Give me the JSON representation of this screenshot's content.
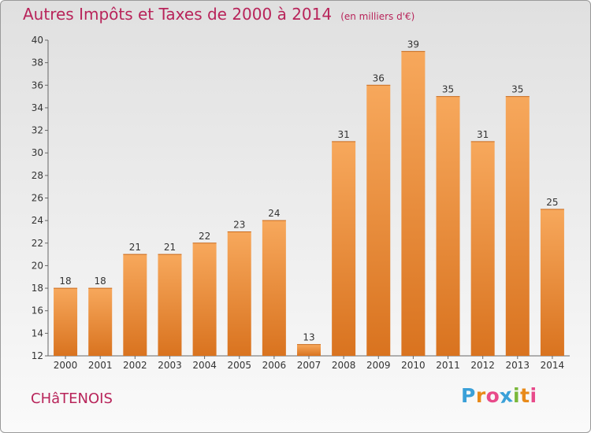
{
  "title": "Autres Impôts et Taxes de 2000 à 2014",
  "unit": "(en milliers d'€)",
  "commune": "CHâTENOIS",
  "logo": {
    "letters": [
      "P",
      "r",
      "o",
      "x",
      "i",
      "t",
      "i"
    ],
    "colors": [
      "#3aa0d8",
      "#e88a1a",
      "#e84a8a",
      "#3aa0d8",
      "#7ab83a",
      "#e88a1a",
      "#e84a8a"
    ]
  },
  "colors": {
    "bar_light": "#f7a85c",
    "bar_dark": "#d9731f",
    "text": "#b8245a"
  },
  "chart_data": {
    "type": "bar",
    "title": "Autres Impôts et Taxes de 2000 à 2014",
    "subtitle": "(en milliers d'€)",
    "categories": [
      "2000",
      "2001",
      "2002",
      "2003",
      "2004",
      "2005",
      "2006",
      "2007",
      "2008",
      "2009",
      "2010",
      "2011",
      "2012",
      "2013",
      "2014"
    ],
    "values": [
      18,
      18,
      21,
      21,
      22,
      23,
      24,
      13,
      31,
      36,
      39,
      35,
      31,
      35,
      25
    ],
    "ylim": [
      12,
      40
    ],
    "yticks": [
      12,
      14,
      16,
      18,
      20,
      22,
      24,
      26,
      28,
      30,
      32,
      34,
      36,
      38,
      40
    ],
    "grid": false,
    "legend": "none",
    "xlabel": "",
    "ylabel": ""
  }
}
